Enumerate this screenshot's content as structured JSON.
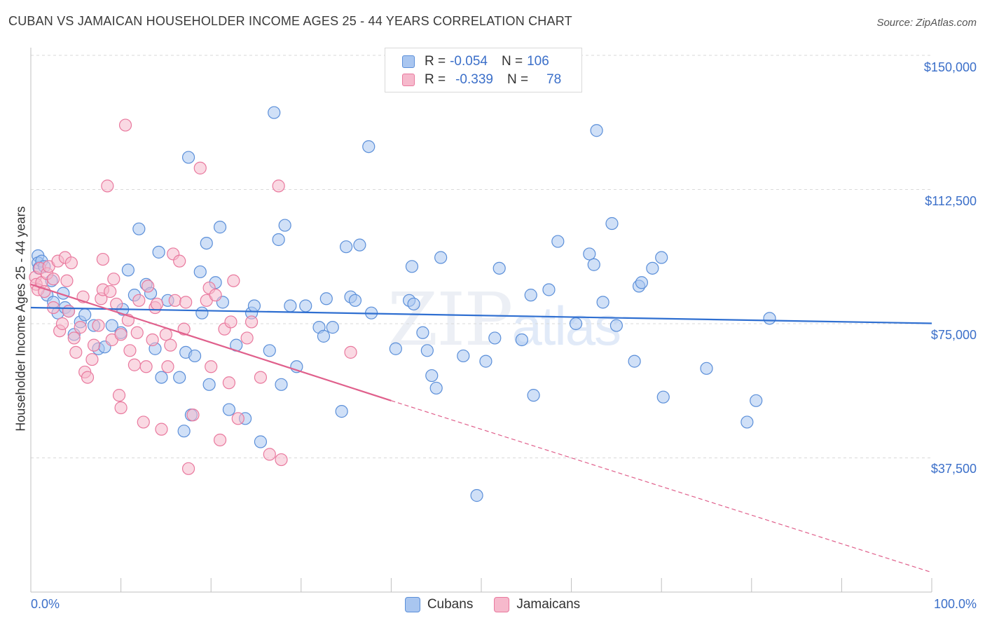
{
  "title": "CUBAN VS JAMAICAN HOUSEHOLDER INCOME AGES 25 - 44 YEARS CORRELATION CHART",
  "source": "Source: ZipAtlas.com",
  "watermark": {
    "zip": "ZIP",
    "atlas": "atlas"
  },
  "legend": {
    "rows": [
      {
        "r_label": "R =",
        "r_value": "-0.054",
        "n_label": "N =",
        "n_value": "106"
      },
      {
        "r_label": "R =",
        "r_value": "-0.339",
        "n_label": "N =",
        "n_value": "78"
      }
    ]
  },
  "colors": {
    "cubans_fill": "#a9c6f0",
    "cubans_stroke": "#5b8fd9",
    "cubans_line": "#2f6fd1",
    "jamaicans_fill": "#f6b9cc",
    "jamaicans_stroke": "#e9799e",
    "jamaicans_line": "#e0608c",
    "grid": "#d9d9d9",
    "tick_label": "#3b6fc9"
  },
  "chart_data": {
    "type": "scatter",
    "title": "CUBAN VS JAMAICAN HOUSEHOLDER INCOME AGES 25 - 44 YEARS CORRELATION CHART",
    "xlabel": "",
    "ylabel": "Householder Income Ages 25 - 44 years",
    "xlim": [
      0,
      100
    ],
    "ylim": [
      0,
      150000
    ],
    "x_tick_labels": [
      "0.0%",
      "100.0%"
    ],
    "y_ticks": [
      37500,
      75000,
      112500,
      150000
    ],
    "y_tick_labels": [
      "$37,500",
      "$75,000",
      "$112,500",
      "$150,000"
    ],
    "grid": true,
    "legend_position": "top-center",
    "series": [
      {
        "name": "Cubans",
        "r": -0.054,
        "n": 106,
        "trend": {
          "x": [
            0,
            100
          ],
          "y": [
            79500,
            75100
          ],
          "style": "solid"
        },
        "points": [
          [
            0.8,
            94000
          ],
          [
            0.8,
            92000
          ],
          [
            0.9,
            90500
          ],
          [
            1.2,
            92500
          ],
          [
            1.5,
            91000
          ],
          [
            1.8,
            83000
          ],
          [
            2.3,
            87000
          ],
          [
            2.5,
            81000
          ],
          [
            3.0,
            78000
          ],
          [
            3.6,
            83500
          ],
          [
            3.8,
            79500
          ],
          [
            4.2,
            78500
          ],
          [
            4.8,
            72000
          ],
          [
            5.5,
            75500
          ],
          [
            6.0,
            77500
          ],
          [
            7.0,
            74500
          ],
          [
            7.5,
            68000
          ],
          [
            8.2,
            68500
          ],
          [
            9.0,
            74500
          ],
          [
            10.0,
            72500
          ],
          [
            10.2,
            79000
          ],
          [
            10.8,
            90000
          ],
          [
            11.5,
            83000
          ],
          [
            12.0,
            101500
          ],
          [
            12.8,
            86000
          ],
          [
            13.3,
            83500
          ],
          [
            13.8,
            68000
          ],
          [
            14.2,
            95000
          ],
          [
            14.5,
            60000
          ],
          [
            15.2,
            81500
          ],
          [
            16.5,
            60000
          ],
          [
            17.0,
            45000
          ],
          [
            17.2,
            67000
          ],
          [
            17.5,
            121500
          ],
          [
            17.8,
            49500
          ],
          [
            18.2,
            66000
          ],
          [
            18.8,
            89500
          ],
          [
            19.0,
            78000
          ],
          [
            19.5,
            97500
          ],
          [
            19.8,
            58000
          ],
          [
            20.5,
            86500
          ],
          [
            21.0,
            102000
          ],
          [
            21.3,
            81000
          ],
          [
            22.0,
            51000
          ],
          [
            22.8,
            69000
          ],
          [
            23.8,
            48500
          ],
          [
            24.5,
            78000
          ],
          [
            24.8,
            80000
          ],
          [
            25.5,
            42000
          ],
          [
            26.5,
            67500
          ],
          [
            27.0,
            134000
          ],
          [
            27.5,
            98500
          ],
          [
            27.8,
            58000
          ],
          [
            28.2,
            102500
          ],
          [
            28.8,
            80000
          ],
          [
            29.5,
            63000
          ],
          [
            30.5,
            80000
          ],
          [
            32.0,
            74000
          ],
          [
            32.5,
            71500
          ],
          [
            32.8,
            82000
          ],
          [
            33.5,
            74000
          ],
          [
            34.5,
            50500
          ],
          [
            35.0,
            96500
          ],
          [
            35.5,
            82500
          ],
          [
            36.0,
            81500
          ],
          [
            36.5,
            97000
          ],
          [
            37.5,
            124500
          ],
          [
            37.8,
            78000
          ],
          [
            40.5,
            68000
          ],
          [
            42.0,
            81500
          ],
          [
            42.3,
            91000
          ],
          [
            42.5,
            80500
          ],
          [
            43.5,
            72500
          ],
          [
            44.0,
            67500
          ],
          [
            44.5,
            60500
          ],
          [
            45.0,
            57000
          ],
          [
            45.5,
            93500
          ],
          [
            48.0,
            66000
          ],
          [
            49.5,
            27000
          ],
          [
            50.5,
            64500
          ],
          [
            51.5,
            71000
          ],
          [
            52.0,
            90500
          ],
          [
            54.5,
            70500
          ],
          [
            55.5,
            83000
          ],
          [
            55.8,
            55000
          ],
          [
            57.5,
            84500
          ],
          [
            58.5,
            98000
          ],
          [
            60.5,
            75000
          ],
          [
            62.0,
            94500
          ],
          [
            62.5,
            91500
          ],
          [
            62.8,
            129000
          ],
          [
            63.5,
            81000
          ],
          [
            64.5,
            103000
          ],
          [
            65.0,
            74500
          ],
          [
            67.0,
            64500
          ],
          [
            67.5,
            85500
          ],
          [
            67.8,
            86500
          ],
          [
            69.0,
            90500
          ],
          [
            70.0,
            93500
          ],
          [
            70.2,
            54500
          ],
          [
            75.0,
            62500
          ],
          [
            79.5,
            47500
          ],
          [
            80.5,
            53500
          ],
          [
            82.0,
            76500
          ]
        ]
      },
      {
        "name": "Jamaicans",
        "r": -0.339,
        "n": 78,
        "trend": {
          "x": [
            0,
            40,
            100
          ],
          "y": [
            86000,
            53500,
            5500
          ],
          "style": "solid-then-dashed",
          "dash_from": 40
        },
        "points": [
          [
            0.5,
            88000
          ],
          [
            0.6,
            86000
          ],
          [
            0.8,
            84500
          ],
          [
            1.0,
            90500
          ],
          [
            1.2,
            86500
          ],
          [
            1.5,
            84000
          ],
          [
            1.8,
            89000
          ],
          [
            2.0,
            91000
          ],
          [
            2.5,
            87500
          ],
          [
            2.5,
            79500
          ],
          [
            3.0,
            92500
          ],
          [
            3.2,
            73000
          ],
          [
            3.5,
            75000
          ],
          [
            3.8,
            93500
          ],
          [
            4.0,
            87000
          ],
          [
            4.2,
            78500
          ],
          [
            4.5,
            92000
          ],
          [
            4.8,
            71000
          ],
          [
            5.0,
            67000
          ],
          [
            5.5,
            74000
          ],
          [
            5.8,
            82500
          ],
          [
            6.0,
            61500
          ],
          [
            6.3,
            60000
          ],
          [
            6.8,
            65000
          ],
          [
            7.0,
            69000
          ],
          [
            7.5,
            74500
          ],
          [
            7.8,
            82000
          ],
          [
            8.0,
            84500
          ],
          [
            8.0,
            93000
          ],
          [
            8.5,
            113500
          ],
          [
            8.8,
            84000
          ],
          [
            9.0,
            70500
          ],
          [
            9.2,
            87500
          ],
          [
            9.5,
            80500
          ],
          [
            9.8,
            55000
          ],
          [
            10.0,
            51500
          ],
          [
            10.0,
            72000
          ],
          [
            10.5,
            130500
          ],
          [
            10.8,
            76000
          ],
          [
            11.0,
            67500
          ],
          [
            11.5,
            63500
          ],
          [
            11.8,
            72500
          ],
          [
            12.0,
            81500
          ],
          [
            12.5,
            47500
          ],
          [
            12.8,
            63000
          ],
          [
            13.0,
            85500
          ],
          [
            13.5,
            70500
          ],
          [
            13.8,
            79500
          ],
          [
            14.0,
            80500
          ],
          [
            14.5,
            45500
          ],
          [
            15.0,
            72000
          ],
          [
            15.2,
            63000
          ],
          [
            15.5,
            69000
          ],
          [
            15.8,
            94500
          ],
          [
            16.0,
            81500
          ],
          [
            16.5,
            92500
          ],
          [
            17.0,
            73500
          ],
          [
            17.2,
            81000
          ],
          [
            17.5,
            34500
          ],
          [
            18.0,
            49500
          ],
          [
            18.8,
            118500
          ],
          [
            19.5,
            81500
          ],
          [
            19.8,
            85000
          ],
          [
            20.0,
            63000
          ],
          [
            20.5,
            83000
          ],
          [
            21.0,
            42500
          ],
          [
            21.5,
            73500
          ],
          [
            22.0,
            58500
          ],
          [
            22.2,
            75500
          ],
          [
            22.5,
            87000
          ],
          [
            23.0,
            48500
          ],
          [
            24.0,
            71000
          ],
          [
            24.5,
            75500
          ],
          [
            25.5,
            60000
          ],
          [
            26.5,
            38500
          ],
          [
            27.5,
            113500
          ],
          [
            27.8,
            37000
          ],
          [
            35.5,
            67000
          ]
        ]
      }
    ]
  },
  "bottom_legend": [
    "Cubans",
    "Jamaicans"
  ]
}
